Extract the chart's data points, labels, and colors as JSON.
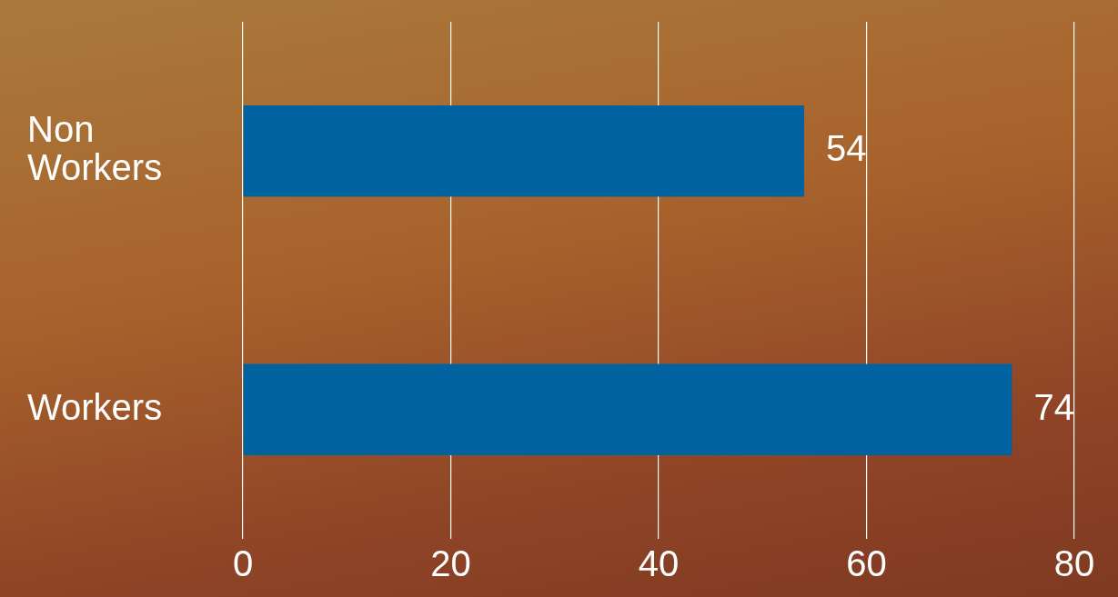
{
  "chart_data": {
    "type": "bar",
    "orientation": "horizontal",
    "categories": [
      "Non Workers",
      "Workers"
    ],
    "values": [
      54,
      74
    ],
    "color": "#00629f",
    "xlim": [
      0,
      80
    ],
    "xticks": [
      0,
      20,
      40,
      60,
      80
    ],
    "grid": "x",
    "data_labels": true,
    "legend": false
  }
}
